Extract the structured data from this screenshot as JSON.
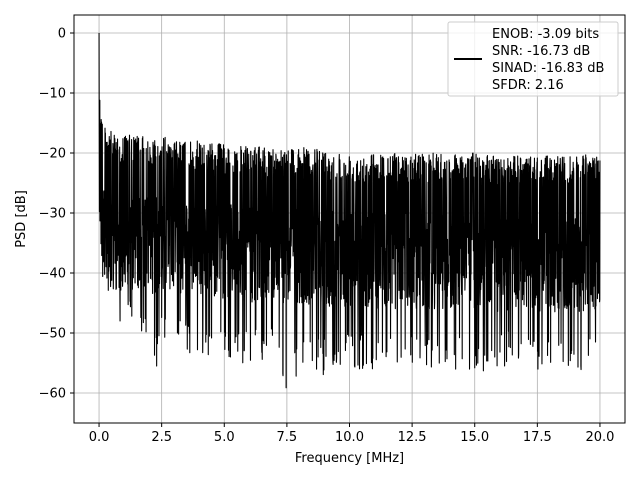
{
  "chart_data": {
    "type": "line",
    "title": "",
    "xlabel": "Frequency [MHz]",
    "ylabel": "PSD [dB]",
    "xlim": [
      -1.0,
      21.0
    ],
    "ylim": [
      -65,
      3
    ],
    "xticks": [
      0.0,
      2.5,
      5.0,
      7.5,
      10.0,
      12.5,
      15.0,
      17.5,
      20.0
    ],
    "xtick_labels": [
      "0.0",
      "2.5",
      "5.0",
      "7.5",
      "10.0",
      "12.5",
      "15.0",
      "17.5",
      "20.0"
    ],
    "yticks": [
      0,
      -10,
      -20,
      -30,
      -40,
      -50,
      -60
    ],
    "ytick_labels": [
      "0",
      "−10",
      "−20",
      "−30",
      "−40",
      "−50",
      "−60"
    ],
    "grid": true,
    "legend_position": "top-right",
    "series": [
      {
        "color": "#000000",
        "x_range": [
          0.0,
          20.0
        ],
        "description_points": {
          "x": [
            0.0,
            0.02,
            0.05,
            0.1,
            0.2,
            0.4,
            0.6,
            0.8,
            1.0,
            1.5,
            2.0,
            2.1,
            2.5,
            3.0,
            4.0,
            5.0,
            6.0,
            7.0,
            7.6,
            8.0,
            9.0,
            10.0,
            11.0,
            12.0,
            13.0,
            14.0,
            15.0,
            16.0,
            17.0,
            18.0,
            19.0,
            20.0
          ],
          "upper": [
            0,
            -5,
            -10,
            -13,
            -15,
            -16,
            -17,
            -17,
            -17,
            -17,
            -17.5,
            -17.5,
            -17,
            -18,
            -18,
            -18.5,
            -19,
            -19,
            -19,
            -19,
            -19.5,
            -20,
            -20,
            -20,
            -20,
            -20,
            -20,
            -20.5,
            -20.5,
            -20.5,
            -20.5,
            -20
          ],
          "lower": [
            -33,
            -35,
            -38,
            -42,
            -45,
            -46,
            -47,
            -48,
            -49,
            -50,
            -51,
            -60.5,
            -52,
            -52,
            -55,
            -55,
            -55,
            -55,
            -61,
            -56,
            -57,
            -56,
            -56,
            -56,
            -56,
            -56,
            -57,
            -56,
            -55,
            -57,
            -58,
            -53
          ]
        }
      }
    ],
    "legend": {
      "lines": [
        "ENOB: -3.09 bits",
        "SNR: -16.73 dB",
        "SINAD: -16.83 dB",
        "SFDR: 2.16"
      ]
    }
  }
}
